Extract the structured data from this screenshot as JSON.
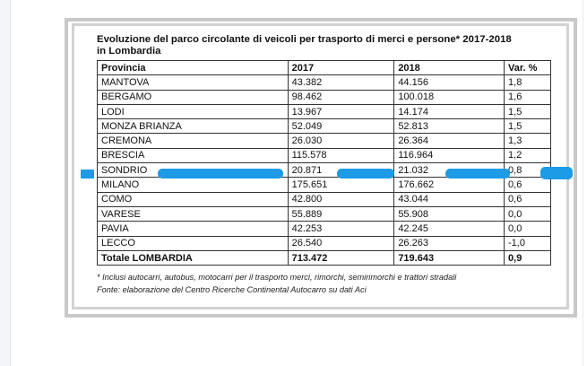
{
  "title_lines": [
    "Evoluzione del parco circolante di veicoli per trasporto di merci e persone* 2017-2018",
    "in Lombardia"
  ],
  "table": {
    "headers": [
      "Provincia",
      "2017",
      "2018",
      "Var. %"
    ],
    "rows": [
      [
        "MANTOVA",
        "43.382",
        "44.156",
        "1,8"
      ],
      [
        "BERGAMO",
        "98.462",
        "100.018",
        "1,6"
      ],
      [
        "LODI",
        "13.967",
        "14.174",
        "1,5"
      ],
      [
        "MONZA BRIANZA",
        "52.049",
        "52.813",
        "1,5"
      ],
      [
        "CREMONA",
        "26.030",
        "26.364",
        "1,3"
      ],
      [
        "BRESCIA",
        "115.578",
        "116.964",
        "1,2"
      ],
      [
        "SONDRIO",
        "20.871",
        "21.032",
        "0,8"
      ],
      [
        "MILANO",
        "175.651",
        "176.662",
        "0,6"
      ],
      [
        "COMO",
        "42.800",
        "43.044",
        "0,6"
      ],
      [
        "VARESE",
        "55.889",
        "55.908",
        "0,0"
      ],
      [
        "PAVIA",
        "42.253",
        "42.245",
        "0,0"
      ],
      [
        "LECCO",
        "26.540",
        "26.263",
        "-1,0"
      ]
    ],
    "total": [
      "Totale LOMBARDIA",
      "713.472",
      "719.643",
      "0,9"
    ],
    "highlight_color": "#1d9be6"
  },
  "notes": [
    "* Inclusi autocarri, autobus, motocarri per il trasporto merci, rimorchi, semirimorchi e trattori stradali",
    "Fonte: elaborazione del Centro Ricerche Continental Autocarro su dati Aci"
  ]
}
